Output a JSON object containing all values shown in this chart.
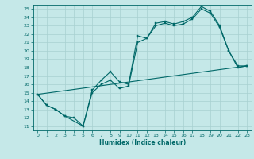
{
  "xlabel": "Humidex (Indice chaleur)",
  "bg_color": "#c5e8e8",
  "grid_color": "#a8d0d0",
  "line_color": "#006868",
  "xlim": [
    -0.5,
    23.5
  ],
  "ylim": [
    10.5,
    25.5
  ],
  "xticks": [
    0,
    1,
    2,
    3,
    4,
    5,
    6,
    7,
    8,
    9,
    10,
    11,
    12,
    13,
    14,
    15,
    16,
    17,
    18,
    19,
    20,
    21,
    22,
    23
  ],
  "yticks": [
    11,
    12,
    13,
    14,
    15,
    16,
    17,
    18,
    19,
    20,
    21,
    22,
    23,
    24,
    25
  ],
  "line1_x": [
    0,
    1,
    2,
    3,
    4,
    5,
    6,
    7,
    8,
    9,
    10,
    11,
    12,
    13,
    14,
    15,
    16,
    17,
    18,
    19,
    20,
    21,
    22,
    23
  ],
  "line1_y": [
    14.8,
    13.5,
    13.0,
    12.2,
    12.0,
    11.0,
    15.3,
    16.5,
    17.5,
    16.3,
    16.0,
    21.8,
    21.5,
    23.3,
    23.5,
    23.2,
    23.5,
    24.0,
    25.3,
    24.7,
    23.0,
    20.0,
    18.2,
    18.2
  ],
  "line2_x": [
    0,
    1,
    2,
    3,
    5,
    6,
    7,
    8,
    9,
    10,
    11,
    12,
    13,
    14,
    15,
    16,
    17,
    18,
    19,
    20,
    21,
    22,
    23
  ],
  "line2_y": [
    14.8,
    13.5,
    13.0,
    12.2,
    11.0,
    15.0,
    16.0,
    16.5,
    15.5,
    15.8,
    21.0,
    21.5,
    23.0,
    23.3,
    23.0,
    23.2,
    23.8,
    25.0,
    24.5,
    22.8,
    20.0,
    18.0,
    18.2
  ],
  "line3_x": [
    0,
    23
  ],
  "line3_y": [
    14.8,
    18.2
  ]
}
